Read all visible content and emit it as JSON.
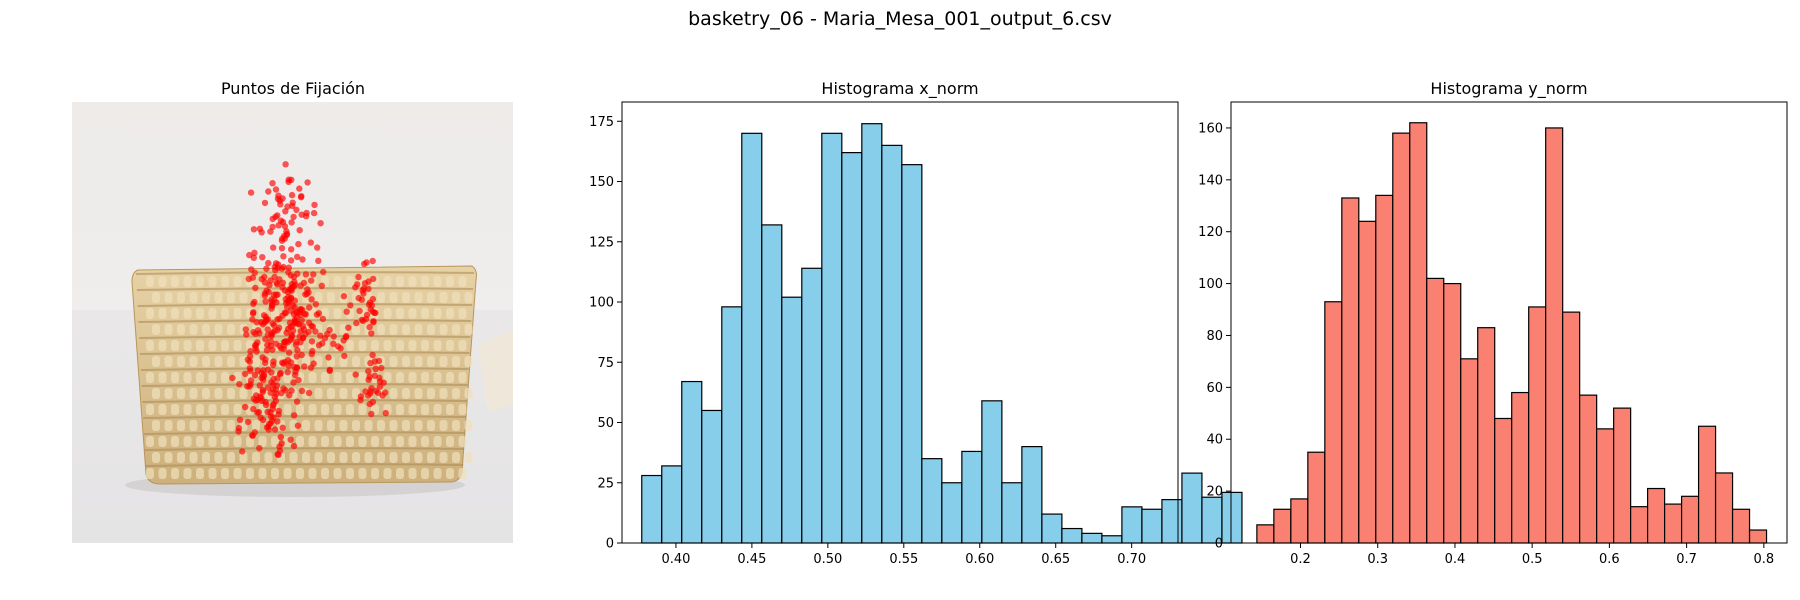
{
  "figure_title": "basketry_06 - Maria_Mesa_001_output_6.csv",
  "image_panel": {
    "title": "Puntos de Fijación"
  },
  "colors": {
    "hist_x": "#87ceeb",
    "hist_y": "#fa8072",
    "edge": "#000000",
    "points": "#ff0000"
  },
  "chart_data": [
    {
      "type": "bar",
      "title": "Histograma x_norm",
      "xlabel": "",
      "ylabel": "",
      "bin_start": 0.3775,
      "bin_width": 0.01317,
      "values": [
        28,
        32,
        67,
        55,
        98,
        170,
        132,
        102,
        114,
        170,
        162,
        174,
        165,
        157,
        35,
        25,
        38,
        59,
        25,
        40,
        12,
        6,
        4,
        3,
        15,
        14,
        18,
        29,
        19,
        21
      ],
      "xlim": [
        0.3645,
        0.7305
      ],
      "ylim": [
        0,
        183
      ],
      "xticks": [
        0.4,
        0.45,
        0.5,
        0.55,
        0.6,
        0.65,
        0.7
      ],
      "xtick_labels": [
        "0.40",
        "0.45",
        "0.50",
        "0.55",
        "0.60",
        "0.65",
        "0.70"
      ],
      "yticks": [
        0,
        25,
        50,
        75,
        100,
        125,
        150,
        175
      ],
      "ytick_labels": [
        "0",
        "25",
        "50",
        "75",
        "100",
        "125",
        "150",
        "175"
      ]
    },
    {
      "type": "bar",
      "title": "Histograma y_norm",
      "xlabel": "",
      "ylabel": "",
      "bin_start": 0.1435,
      "bin_width": 0.022,
      "values": [
        7,
        13,
        17,
        35,
        93,
        133,
        124,
        134,
        158,
        162,
        102,
        100,
        71,
        83,
        48,
        58,
        91,
        160,
        89,
        57,
        44,
        52,
        14,
        21,
        15,
        18,
        45,
        27,
        13,
        5
      ],
      "xlim": [
        0.11,
        0.83
      ],
      "ylim": [
        0,
        170
      ],
      "xticks": [
        0.2,
        0.3,
        0.4,
        0.5,
        0.6,
        0.7,
        0.8
      ],
      "xtick_labels": [
        "0.2",
        "0.3",
        "0.4",
        "0.5",
        "0.6",
        "0.7",
        "0.8"
      ],
      "yticks": [
        0,
        20,
        40,
        60,
        80,
        100,
        120,
        140,
        160
      ],
      "ytick_labels": [
        "0",
        "20",
        "40",
        "60",
        "80",
        "100",
        "120",
        "140",
        "160"
      ]
    }
  ]
}
